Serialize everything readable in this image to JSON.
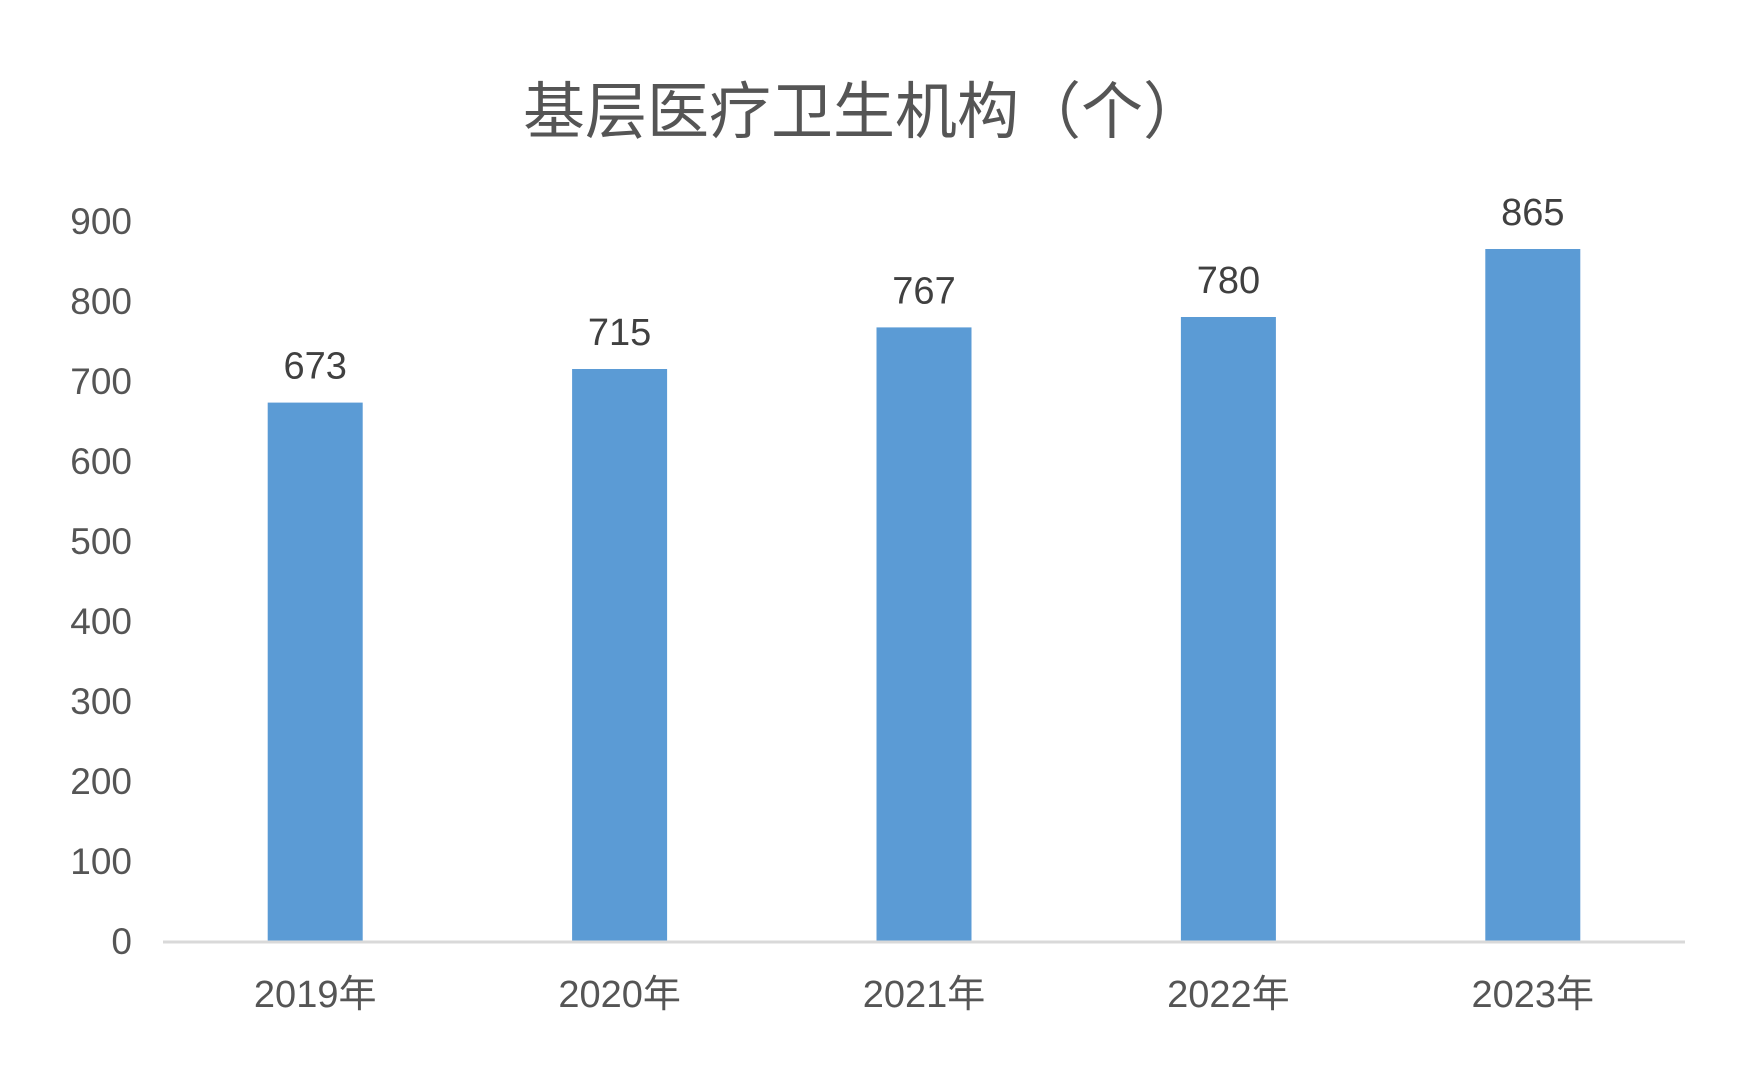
{
  "chart_data": {
    "type": "bar",
    "title": "基层医疗卫生机构（个）",
    "xlabel": "",
    "ylabel": "",
    "categories": [
      "2019年",
      "2020年",
      "2021年",
      "2022年",
      "2023年"
    ],
    "values": [
      673,
      715,
      767,
      780,
      865
    ],
    "data_labels": [
      "673",
      "715",
      "767",
      "780",
      "865"
    ],
    "ylim": [
      0,
      900
    ],
    "yticks": [
      "0",
      "100",
      "200",
      "300",
      "400",
      "500",
      "600",
      "700",
      "800",
      "900"
    ],
    "grid": false,
    "legend": "none",
    "bar_color": "#5b9bd5",
    "axis_color": "#d9d9d9"
  }
}
